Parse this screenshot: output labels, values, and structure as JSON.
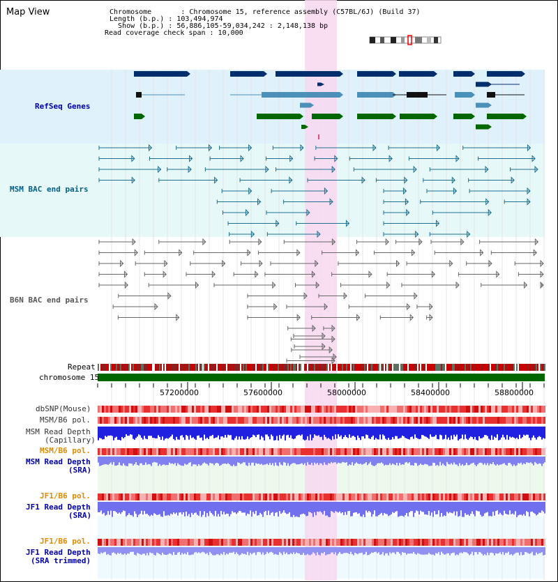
{
  "page_title": "Map View",
  "info": {
    "chromosome": "Chromosome       : Chromosome 15, reference assembly (C57BL/6J) (Build 37)",
    "length": "Length (b.p.) : 103,494,974",
    "show": "  Show (b.p.) : 56,886,105-59,034,242 : 2,148,138 bp",
    "coverage": "Read coverage check span : 10,000"
  },
  "tracks": {
    "refseq": {
      "label": "RefSeq Genes",
      "color": "#0000aa"
    },
    "msm_bac": {
      "label": "MSM BAC end pairs",
      "color": "#005f87"
    },
    "b6n_bac": {
      "label": "B6N BAC end pairs",
      "color": "#555555"
    },
    "repeat": {
      "label": "Repeat"
    },
    "chromosome": {
      "label": "chromosome 15"
    },
    "dbsnp": {
      "label": "dbSNP(Mouse)"
    },
    "msm_pol": {
      "label": "MSM/B6 pol."
    },
    "msm_depth_cap": {
      "label1": "MSM Read Depth",
      "label2": "(Capillary)"
    },
    "msm_pol2": {
      "label": "MSM/B6 pol.",
      "color": "#e08a00"
    },
    "msm_depth_sra": {
      "label1": "MSM Read Depth",
      "label2": "(SRA)",
      "color": "#0000aa"
    },
    "jf1_pol": {
      "label": "JF1/B6 pol.",
      "color": "#e08a00"
    },
    "jf1_depth_sra": {
      "label1": "JF1 Read Depth",
      "label2": "(SRA)",
      "color": "#0000aa"
    },
    "jf1_pol2": {
      "label": "JF1/B6 pol.",
      "color": "#e08a00"
    },
    "jf1_depth_trim": {
      "label1": "JF1 Read Depth",
      "label2": "(SRA trimmed)",
      "color": "#0000aa"
    }
  },
  "axis_ticks": [
    "57200000",
    "57600000",
    "58000000",
    "58400000",
    "58800000"
  ],
  "colors": {
    "highlight": "#f8d8f0",
    "refseq_bg": "#dff1fa",
    "msm_bg": "#e6f8f8",
    "sra_bg": "#eef9ee",
    "gene_navy": "#002d6b",
    "gene_teal": "#4a90b8",
    "gene_green": "#006600",
    "chrom_green": "#006600",
    "pol_red": "#e83030",
    "depth_blue": "#2020e0",
    "depth_lightblue": "#8080f0"
  }
}
